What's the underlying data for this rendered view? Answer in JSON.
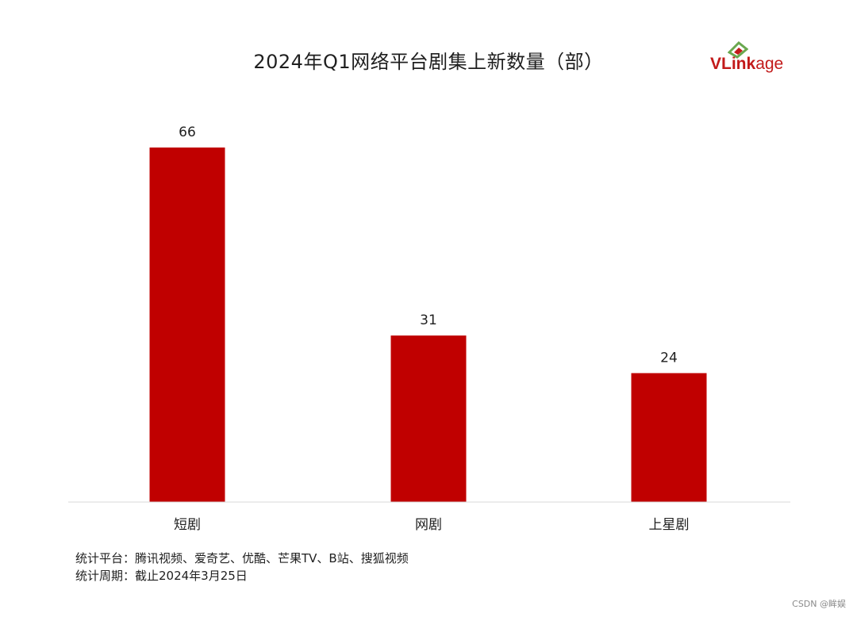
{
  "chart_data": {
    "type": "bar",
    "title": "2024年Q1网络平台剧集上新数量（部）",
    "categories": [
      "短剧",
      "网剧",
      "上星剧"
    ],
    "values": [
      66,
      31,
      24
    ],
    "ylim": [
      0,
      66
    ],
    "bar_color": "#c00000",
    "grid": false,
    "legend": "none"
  },
  "logo": {
    "text_v": "V",
    "text_link": "Link",
    "text_rest": "age"
  },
  "footnotes": {
    "platforms": "统计平台：腾讯视频、爱奇艺、优酷、芒果TV、B站、搜狐视频",
    "period": "统计周期：截止2024年3月25日"
  },
  "watermark": "CSDN @眸娱"
}
